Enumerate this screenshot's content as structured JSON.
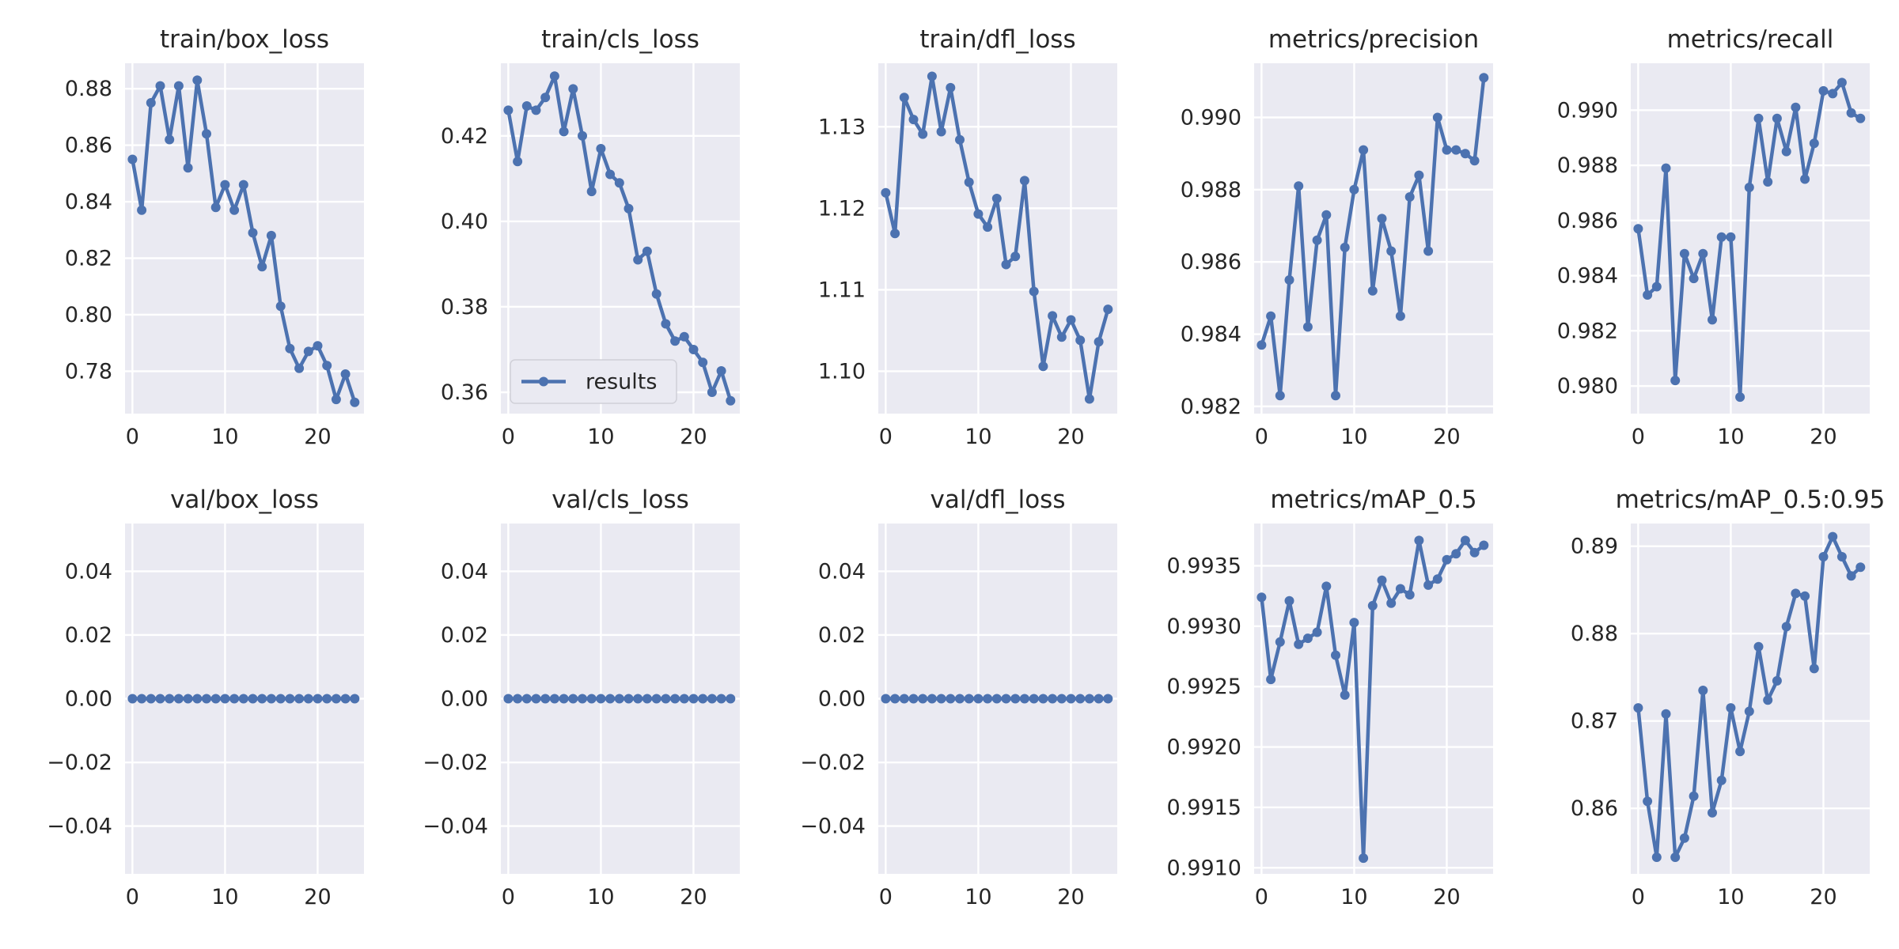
{
  "style": {
    "panel_bg": "#eaeaf2",
    "grid": "#ffffff",
    "line": "#4c72b0",
    "text": "#262626"
  },
  "legend": {
    "label": "results",
    "panel": "train/cls_loss",
    "placement": "lower-left"
  },
  "chart_data": [
    {
      "type": "line",
      "title": "train/box_loss",
      "x": [
        0,
        1,
        2,
        3,
        4,
        5,
        6,
        7,
        8,
        9,
        10,
        11,
        12,
        13,
        14,
        15,
        16,
        17,
        18,
        19,
        20,
        21,
        22,
        23,
        24
      ],
      "series": [
        {
          "name": "results",
          "values": [
            0.855,
            0.837,
            0.875,
            0.881,
            0.862,
            0.881,
            0.852,
            0.883,
            0.864,
            0.838,
            0.846,
            0.837,
            0.846,
            0.829,
            0.817,
            0.828,
            0.803,
            0.788,
            0.781,
            0.787,
            0.789,
            0.782,
            0.77,
            0.779,
            0.769
          ]
        }
      ],
      "xlim": [
        -0.8,
        25
      ],
      "ylim": [
        0.765,
        0.889
      ],
      "xticks": [
        0,
        10,
        20
      ],
      "xticklabels": [
        "0",
        "10",
        "20"
      ],
      "yticks": [
        0.78,
        0.8,
        0.82,
        0.84,
        0.86,
        0.88
      ],
      "yticklabels": [
        "0.78",
        "0.80",
        "0.82",
        "0.84",
        "0.86",
        "0.88"
      ]
    },
    {
      "type": "line",
      "title": "train/cls_loss",
      "x": [
        0,
        1,
        2,
        3,
        4,
        5,
        6,
        7,
        8,
        9,
        10,
        11,
        12,
        13,
        14,
        15,
        16,
        17,
        18,
        19,
        20,
        21,
        22,
        23,
        24
      ],
      "series": [
        {
          "name": "results",
          "values": [
            0.426,
            0.414,
            0.427,
            0.426,
            0.429,
            0.434,
            0.421,
            0.431,
            0.42,
            0.407,
            0.417,
            0.411,
            0.409,
            0.403,
            0.391,
            0.393,
            0.383,
            0.376,
            0.372,
            0.373,
            0.37,
            0.367,
            0.36,
            0.365,
            0.358
          ]
        }
      ],
      "xlim": [
        -0.8,
        25
      ],
      "ylim": [
        0.355,
        0.437
      ],
      "xticks": [
        0,
        10,
        20
      ],
      "xticklabels": [
        "0",
        "10",
        "20"
      ],
      "yticks": [
        0.36,
        0.38,
        0.4,
        0.42
      ],
      "yticklabels": [
        "0.36",
        "0.38",
        "0.40",
        "0.42"
      ]
    },
    {
      "type": "line",
      "title": "train/dfl_loss",
      "x": [
        0,
        1,
        2,
        3,
        4,
        5,
        6,
        7,
        8,
        9,
        10,
        11,
        12,
        13,
        14,
        15,
        16,
        17,
        18,
        19,
        20,
        21,
        22,
        23,
        24
      ],
      "series": [
        {
          "name": "results",
          "values": [
            1.1219,
            1.1169,
            1.1336,
            1.1309,
            1.1291,
            1.1362,
            1.1294,
            1.1348,
            1.1284,
            1.1232,
            1.1193,
            1.1177,
            1.1212,
            1.1131,
            1.1141,
            1.1234,
            1.1098,
            1.1006,
            1.1068,
            1.1042,
            1.1063,
            1.1038,
            1.0966,
            1.1036,
            1.1076
          ]
        }
      ],
      "xlim": [
        -0.8,
        25
      ],
      "ylim": [
        1.0948,
        1.1378
      ],
      "xticks": [
        0,
        10,
        20
      ],
      "xticklabels": [
        "0",
        "10",
        "20"
      ],
      "yticks": [
        1.1,
        1.11,
        1.12,
        1.13
      ],
      "yticklabels": [
        "1.10",
        "1.11",
        "1.12",
        "1.13"
      ]
    },
    {
      "type": "line",
      "title": "metrics/precision",
      "x": [
        0,
        1,
        2,
        3,
        4,
        5,
        6,
        7,
        8,
        9,
        10,
        11,
        12,
        13,
        14,
        15,
        16,
        17,
        18,
        19,
        20,
        21,
        22,
        23,
        24
      ],
      "series": [
        {
          "name": "results",
          "values": [
            0.9837,
            0.9845,
            0.9823,
            0.9855,
            0.9881,
            0.9842,
            0.9866,
            0.9873,
            0.9823,
            0.9864,
            0.988,
            0.9891,
            0.9852,
            0.9872,
            0.9863,
            0.9845,
            0.9878,
            0.9884,
            0.9863,
            0.99,
            0.9891,
            0.9891,
            0.989,
            0.9888,
            0.9911
          ]
        }
      ],
      "xlim": [
        -0.8,
        25
      ],
      "ylim": [
        0.9818,
        0.9915
      ],
      "xticks": [
        0,
        10,
        20
      ],
      "xticklabels": [
        "0",
        "10",
        "20"
      ],
      "yticks": [
        0.982,
        0.984,
        0.986,
        0.988,
        0.99
      ],
      "yticklabels": [
        "0.982",
        "0.984",
        "0.986",
        "0.988",
        "0.990"
      ]
    },
    {
      "type": "line",
      "title": "metrics/recall",
      "x": [
        0,
        1,
        2,
        3,
        4,
        5,
        6,
        7,
        8,
        9,
        10,
        11,
        12,
        13,
        14,
        15,
        16,
        17,
        18,
        19,
        20,
        21,
        22,
        23,
        24
      ],
      "series": [
        {
          "name": "results",
          "values": [
            0.9857,
            0.9833,
            0.9836,
            0.9879,
            0.9802,
            0.9848,
            0.9839,
            0.9848,
            0.9824,
            0.9854,
            0.9854,
            0.9796,
            0.9872,
            0.9897,
            0.9874,
            0.9897,
            0.9885,
            0.9901,
            0.9875,
            0.9888,
            0.9907,
            0.9906,
            0.991,
            0.9899,
            0.9897
          ]
        }
      ],
      "xlim": [
        -0.8,
        25
      ],
      "ylim": [
        0.979,
        0.9917
      ],
      "xticks": [
        0,
        10,
        20
      ],
      "xticklabels": [
        "0",
        "10",
        "20"
      ],
      "yticks": [
        0.98,
        0.982,
        0.984,
        0.986,
        0.988,
        0.99
      ],
      "yticklabels": [
        "0.980",
        "0.982",
        "0.984",
        "0.986",
        "0.988",
        "0.990"
      ]
    },
    {
      "type": "line",
      "title": "val/box_loss",
      "x": [
        0,
        1,
        2,
        3,
        4,
        5,
        6,
        7,
        8,
        9,
        10,
        11,
        12,
        13,
        14,
        15,
        16,
        17,
        18,
        19,
        20,
        21,
        22,
        23,
        24
      ],
      "series": [
        {
          "name": "results",
          "values": [
            0,
            0,
            0,
            0,
            0,
            0,
            0,
            0,
            0,
            0,
            0,
            0,
            0,
            0,
            0,
            0,
            0,
            0,
            0,
            0,
            0,
            0,
            0,
            0,
            0
          ]
        }
      ],
      "xlim": [
        -0.8,
        25
      ],
      "ylim": [
        -0.055,
        0.055
      ],
      "xticks": [
        0,
        10,
        20
      ],
      "xticklabels": [
        "0",
        "10",
        "20"
      ],
      "yticks": [
        -0.04,
        -0.02,
        0.0,
        0.02,
        0.04
      ],
      "yticklabels": [
        "−0.04",
        "−0.02",
        "0.00",
        "0.02",
        "0.04"
      ]
    },
    {
      "type": "line",
      "title": "val/cls_loss",
      "x": [
        0,
        1,
        2,
        3,
        4,
        5,
        6,
        7,
        8,
        9,
        10,
        11,
        12,
        13,
        14,
        15,
        16,
        17,
        18,
        19,
        20,
        21,
        22,
        23,
        24
      ],
      "series": [
        {
          "name": "results",
          "values": [
            0,
            0,
            0,
            0,
            0,
            0,
            0,
            0,
            0,
            0,
            0,
            0,
            0,
            0,
            0,
            0,
            0,
            0,
            0,
            0,
            0,
            0,
            0,
            0,
            0
          ]
        }
      ],
      "xlim": [
        -0.8,
        25
      ],
      "ylim": [
        -0.055,
        0.055
      ],
      "xticks": [
        0,
        10,
        20
      ],
      "xticklabels": [
        "0",
        "10",
        "20"
      ],
      "yticks": [
        -0.04,
        -0.02,
        0.0,
        0.02,
        0.04
      ],
      "yticklabels": [
        "−0.04",
        "−0.02",
        "0.00",
        "0.02",
        "0.04"
      ]
    },
    {
      "type": "line",
      "title": "val/dfl_loss",
      "x": [
        0,
        1,
        2,
        3,
        4,
        5,
        6,
        7,
        8,
        9,
        10,
        11,
        12,
        13,
        14,
        15,
        16,
        17,
        18,
        19,
        20,
        21,
        22,
        23,
        24
      ],
      "series": [
        {
          "name": "results",
          "values": [
            0,
            0,
            0,
            0,
            0,
            0,
            0,
            0,
            0,
            0,
            0,
            0,
            0,
            0,
            0,
            0,
            0,
            0,
            0,
            0,
            0,
            0,
            0,
            0,
            0
          ]
        }
      ],
      "xlim": [
        -0.8,
        25
      ],
      "ylim": [
        -0.055,
        0.055
      ],
      "xticks": [
        0,
        10,
        20
      ],
      "xticklabels": [
        "0",
        "10",
        "20"
      ],
      "yticks": [
        -0.04,
        -0.02,
        0.0,
        0.02,
        0.04
      ],
      "yticklabels": [
        "−0.04",
        "−0.02",
        "0.00",
        "0.02",
        "0.04"
      ]
    },
    {
      "type": "line",
      "title": "metrics/mAP_0.5",
      "x": [
        0,
        1,
        2,
        3,
        4,
        5,
        6,
        7,
        8,
        9,
        10,
        11,
        12,
        13,
        14,
        15,
        16,
        17,
        18,
        19,
        20,
        21,
        22,
        23,
        24
      ],
      "series": [
        {
          "name": "results",
          "values": [
            0.99324,
            0.99256,
            0.99287,
            0.99321,
            0.99285,
            0.9929,
            0.99295,
            0.99333,
            0.99276,
            0.99243,
            0.99303,
            0.99108,
            0.99317,
            0.99338,
            0.99319,
            0.99331,
            0.99326,
            0.99371,
            0.99334,
            0.99339,
            0.99355,
            0.9936,
            0.99371,
            0.99361,
            0.99367
          ]
        }
      ],
      "xlim": [
        -0.8,
        25
      ],
      "ylim": [
        0.99095,
        0.99385
      ],
      "xticks": [
        0,
        10,
        20
      ],
      "xticklabels": [
        "0",
        "10",
        "20"
      ],
      "yticks": [
        0.991,
        0.9915,
        0.992,
        0.9925,
        0.993,
        0.9935
      ],
      "yticklabels": [
        "0.9910",
        "0.9915",
        "0.9920",
        "0.9925",
        "0.9930",
        "0.9935"
      ]
    },
    {
      "type": "line",
      "title": "metrics/mAP_0.5:0.95",
      "x": [
        0,
        1,
        2,
        3,
        4,
        5,
        6,
        7,
        8,
        9,
        10,
        11,
        12,
        13,
        14,
        15,
        16,
        17,
        18,
        19,
        20,
        21,
        22,
        23,
        24
      ],
      "series": [
        {
          "name": "results",
          "values": [
            0.8715,
            0.8608,
            0.8544,
            0.8708,
            0.8544,
            0.8566,
            0.8614,
            0.8735,
            0.8595,
            0.8632,
            0.8715,
            0.8665,
            0.8711,
            0.8785,
            0.8724,
            0.8746,
            0.8808,
            0.8846,
            0.8843,
            0.876,
            0.8888,
            0.8911,
            0.8888,
            0.8866,
            0.8876
          ]
        }
      ],
      "xlim": [
        -0.8,
        25
      ],
      "ylim": [
        0.8525,
        0.8926
      ],
      "xticks": [
        0,
        10,
        20
      ],
      "xticklabels": [
        "0",
        "10",
        "20"
      ],
      "yticks": [
        0.86,
        0.87,
        0.88,
        0.89
      ],
      "yticklabels": [
        "0.86",
        "0.87",
        "0.88",
        "0.89"
      ]
    }
  ]
}
